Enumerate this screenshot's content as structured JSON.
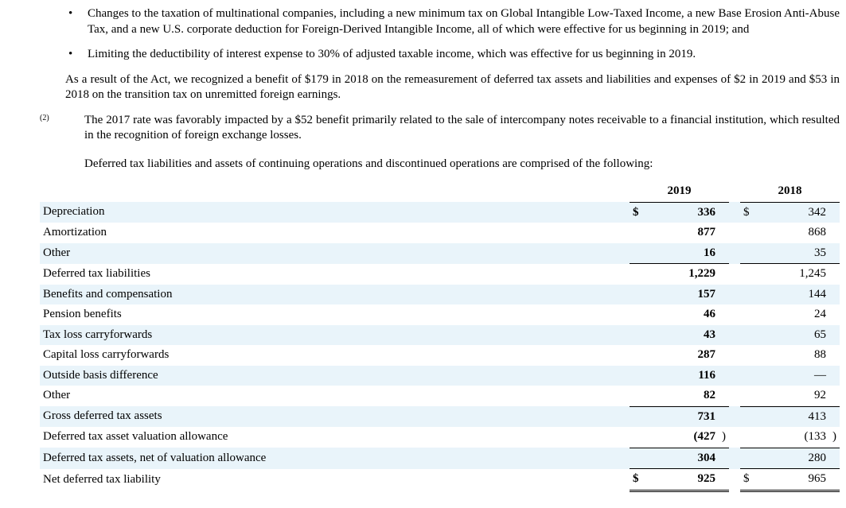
{
  "bullets": [
    "Changes to the taxation of multinational companies, including a new minimum tax on Global Intangible Low-Taxed Income, a new Base Erosion Anti-Abuse Tax, and a new U.S. corporate deduction for Foreign-Derived Intangible Income, all of which were effective for us beginning in 2019; and",
    "Limiting the deductibility of interest expense to 30% of adjusted taxable income, which was effective for us beginning in 2019."
  ],
  "para_after_bullets": "As a result of the Act, we recognized a benefit of $179 in 2018 on the remeasurement of deferred tax assets and liabilities and expenses of $2 in 2019 and $53 in 2018 on the transition tax on unremitted foreign earnings.",
  "footnote_label": "(2)",
  "footnote_text": "The 2017 rate was favorably impacted by a $52 benefit primarily related to the sale of intercompany notes receivable to a financial institution, which resulted in the recognition of foreign exchange losses.",
  "table_intro": "Deferred tax liabilities and assets of continuing operations and discontinued operations are comprised of the following:",
  "table": {
    "years": [
      "2019",
      "2018"
    ],
    "rows": [
      {
        "label": "Depreciation",
        "v19": "336",
        "v18": "342",
        "alt": true,
        "indent": 0,
        "sym19": "$",
        "sym18": "$",
        "paren": false,
        "border": ""
      },
      {
        "label": "Amortization",
        "v19": "877",
        "v18": "868",
        "alt": false,
        "indent": 0,
        "sym19": "",
        "sym18": "",
        "paren": false,
        "border": ""
      },
      {
        "label": "Other",
        "v19": "16",
        "v18": "35",
        "alt": true,
        "indent": 0,
        "sym19": "",
        "sym18": "",
        "paren": false,
        "border": ""
      },
      {
        "label": "Deferred tax liabilities",
        "v19": "1,229",
        "v18": "1,245",
        "alt": false,
        "indent": 1,
        "sym19": "",
        "sym18": "",
        "paren": false,
        "border": "top"
      },
      {
        "label": "Benefits and compensation",
        "v19": "157",
        "v18": "144",
        "alt": true,
        "indent": 0,
        "sym19": "",
        "sym18": "",
        "paren": false,
        "border": ""
      },
      {
        "label": "Pension benefits",
        "v19": "46",
        "v18": "24",
        "alt": false,
        "indent": 0,
        "sym19": "",
        "sym18": "",
        "paren": false,
        "border": ""
      },
      {
        "label": "Tax loss carryforwards",
        "v19": "43",
        "v18": "65",
        "alt": true,
        "indent": 0,
        "sym19": "",
        "sym18": "",
        "paren": false,
        "border": ""
      },
      {
        "label": "Capital loss carryforwards",
        "v19": "287",
        "v18": "88",
        "alt": false,
        "indent": 0,
        "sym19": "",
        "sym18": "",
        "paren": false,
        "border": ""
      },
      {
        "label": "Outside basis difference",
        "v19": "116",
        "v18": "—",
        "alt": true,
        "indent": 0,
        "sym19": "",
        "sym18": "",
        "paren": false,
        "border": ""
      },
      {
        "label": "Other",
        "v19": "82",
        "v18": "92",
        "alt": false,
        "indent": 0,
        "sym19": "",
        "sym18": "",
        "paren": false,
        "border": ""
      },
      {
        "label": "Gross deferred tax assets",
        "v19": "731",
        "v18": "413",
        "alt": true,
        "indent": 1,
        "sym19": "",
        "sym18": "",
        "paren": false,
        "border": "top"
      },
      {
        "label": "Deferred tax asset valuation allowance",
        "v19": "(427",
        "v18": "(133",
        "alt": false,
        "indent": 0,
        "sym19": "",
        "sym18": "",
        "paren": true,
        "border": ""
      },
      {
        "label": "Deferred tax assets, net of valuation allowance",
        "v19": "304",
        "v18": "280",
        "alt": true,
        "indent": 1,
        "sym19": "",
        "sym18": "",
        "paren": false,
        "border": "top"
      },
      {
        "label": "Net deferred tax liability",
        "v19": "925",
        "v18": "965",
        "alt": false,
        "indent": 0,
        "sym19": "$",
        "sym18": "$",
        "paren": false,
        "border": "dbl"
      }
    ]
  },
  "colors": {
    "alt_row": "#e9f4fa",
    "text": "#000000",
    "bg": "#ffffff"
  }
}
